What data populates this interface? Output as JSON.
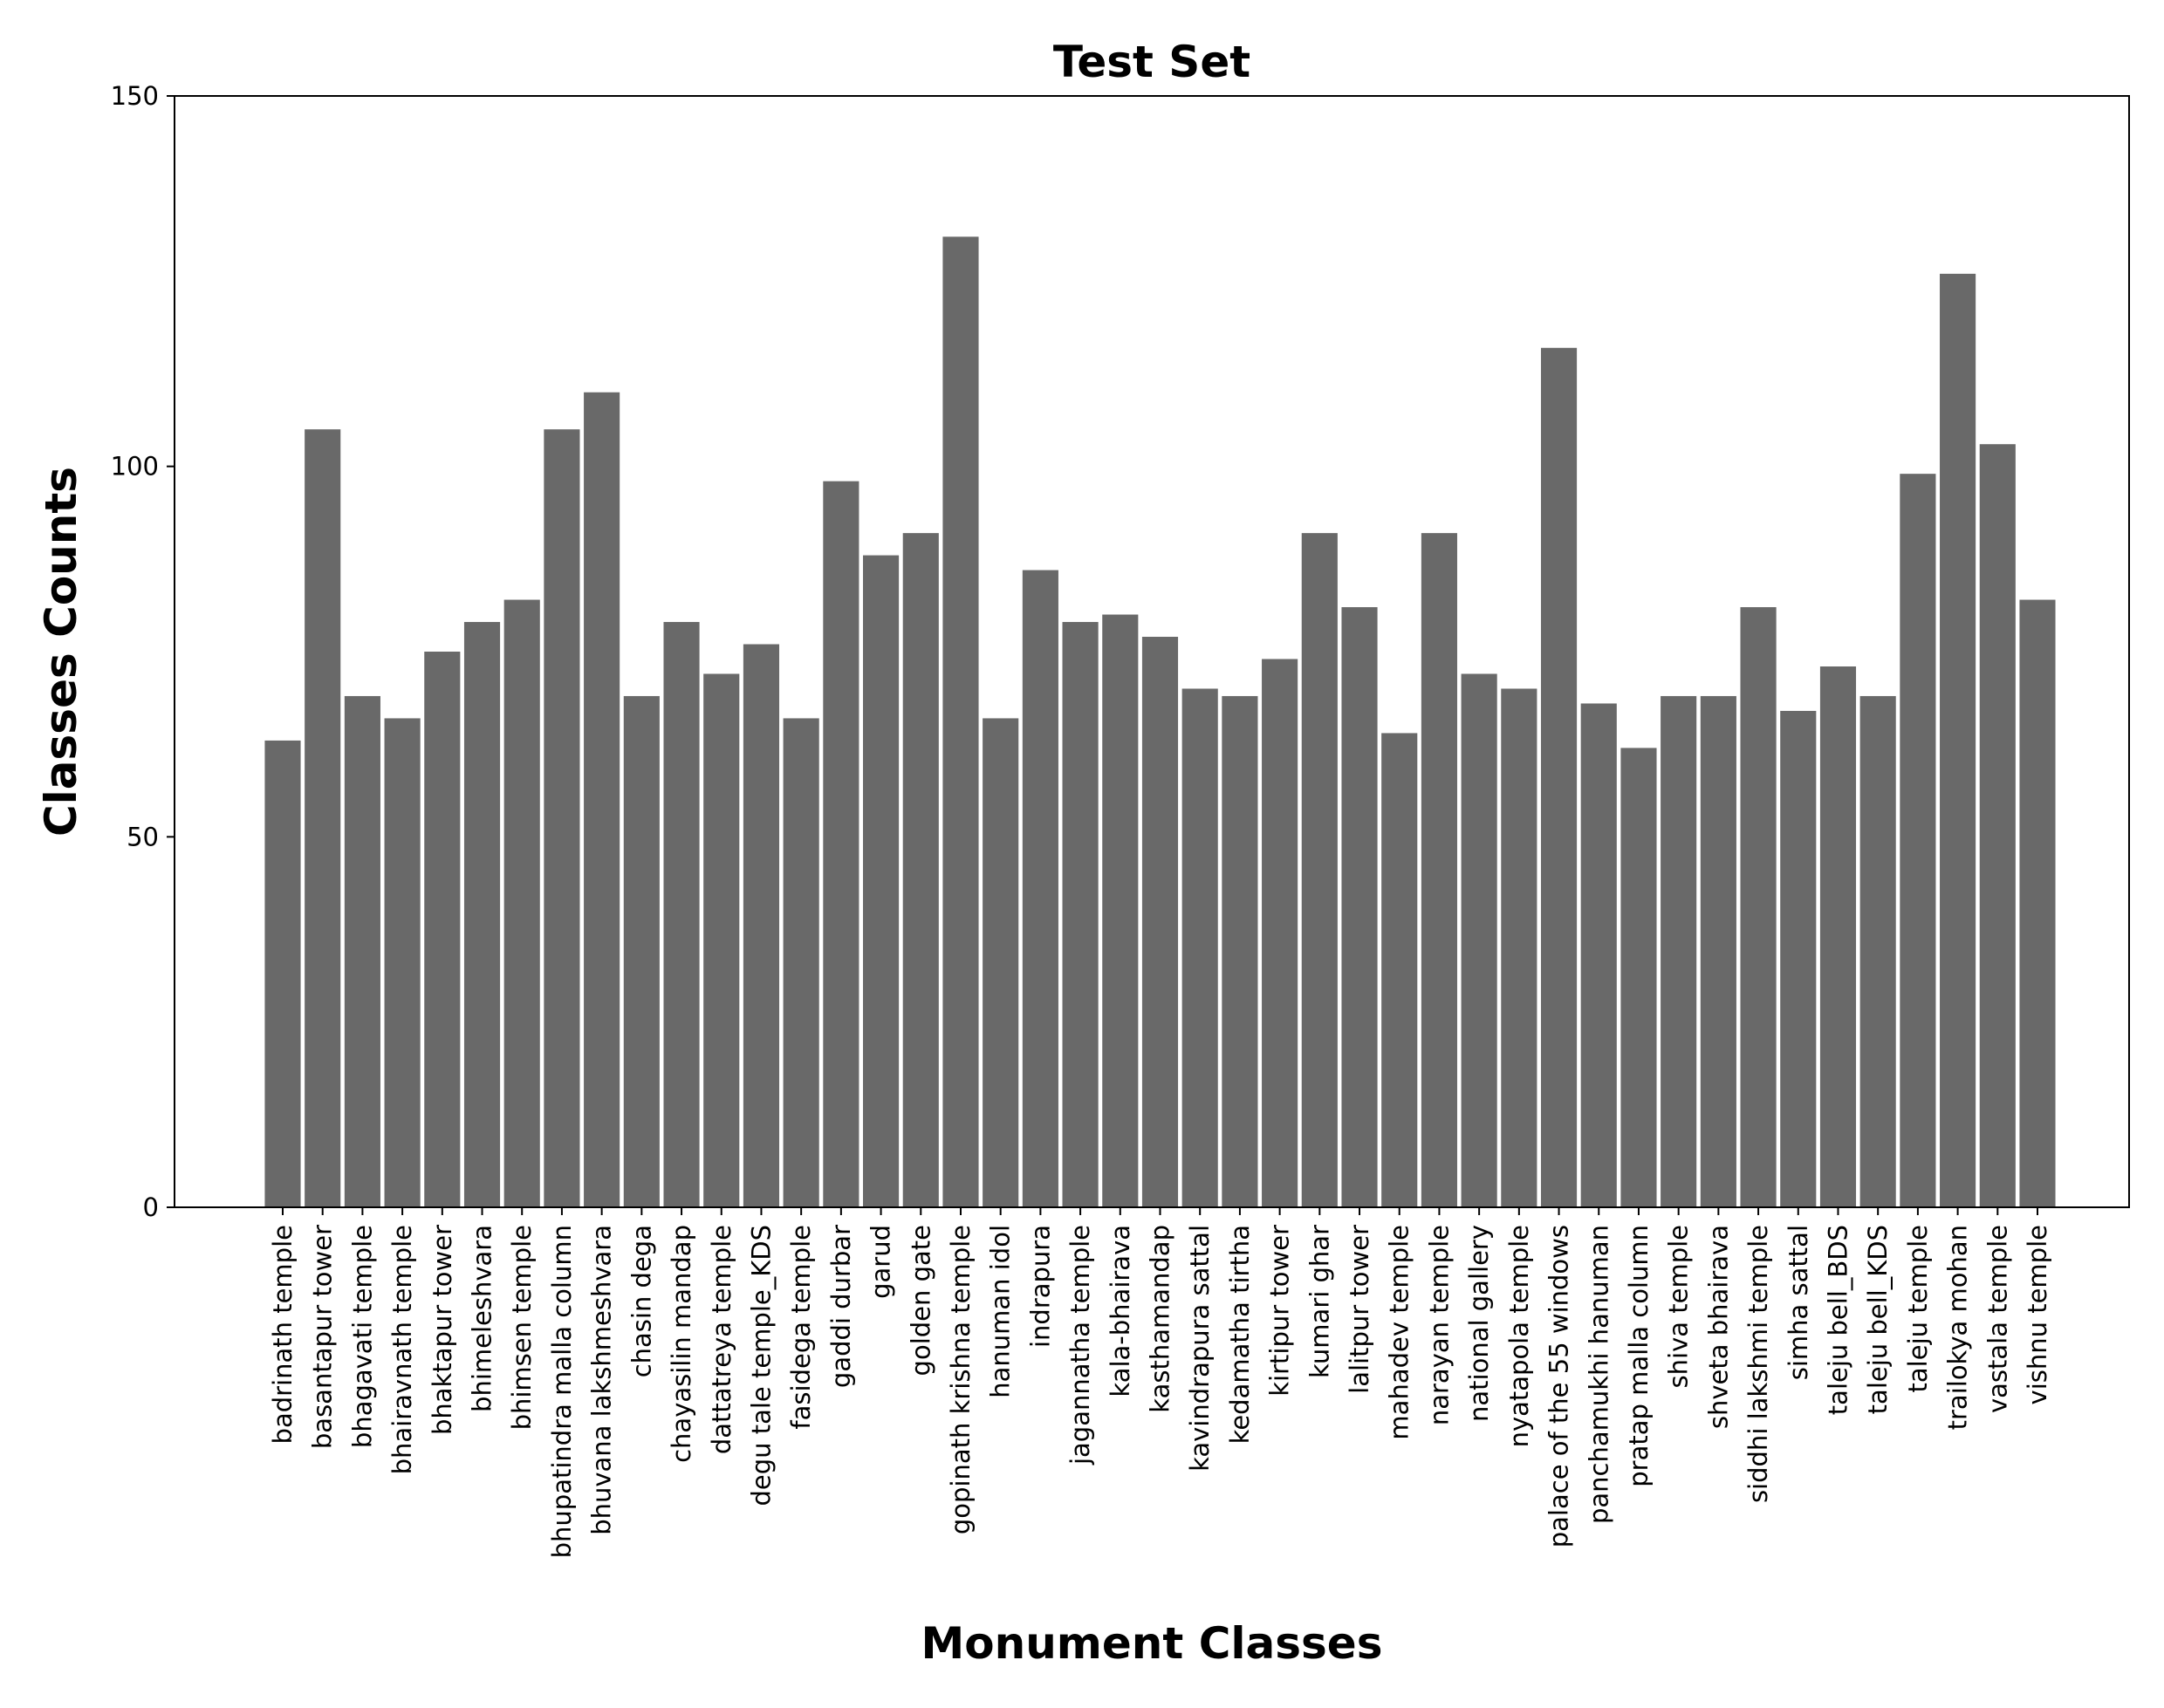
{
  "chart_data": {
    "type": "bar",
    "title": "Test Set",
    "xlabel": "Monument Classes",
    "ylabel": "Classes Counts",
    "ylim": [
      0,
      150
    ],
    "yticks": [
      0,
      50,
      100,
      150
    ],
    "grid": false,
    "bar_color": "#696969",
    "categories": [
      "badrinath temple",
      "basantapur tower",
      "bhagavati temple",
      "bhairavnath temple",
      "bhaktapur tower",
      "bhimeleshvara",
      "bhimsen temple",
      "bhupatindra malla column",
      "bhuvana lakshmeshvara",
      "chasin dega",
      "chayasilin mandap",
      "dattatreya temple",
      "degu tale temple_KDS",
      "fasidega temple",
      "gaddi durbar",
      "garud",
      "golden gate",
      "gopinath krishna temple",
      "hanuman idol",
      "indrapura",
      "jagannatha temple",
      "kala-bhairava",
      "kasthamandap",
      "kavindrapura sattal",
      "kedamatha tirtha",
      "kirtipur tower",
      "kumari ghar",
      "lalitpur tower",
      "mahadev temple",
      "narayan temple",
      "national gallery",
      "nyatapola temple",
      "palace of the 55 windows",
      "panchamukhi hanuman",
      "pratap malla column",
      "shiva temple",
      "shveta bhairava",
      "siddhi lakshmi temple",
      "simha sattal",
      "taleju bell_BDS",
      "taleju bell_KDS",
      "taleju temple",
      "trailokya mohan",
      "vastala temple",
      "vishnu temple"
    ],
    "values": [
      63,
      105,
      69,
      66,
      75,
      79,
      82,
      105,
      110,
      69,
      79,
      72,
      76,
      66,
      98,
      88,
      91,
      131,
      66,
      86,
      79,
      80,
      77,
      70,
      69,
      74,
      91,
      81,
      64,
      91,
      72,
      70,
      116,
      68,
      62,
      69,
      69,
      81,
      67,
      73,
      69,
      99,
      126,
      103,
      82
    ]
  }
}
